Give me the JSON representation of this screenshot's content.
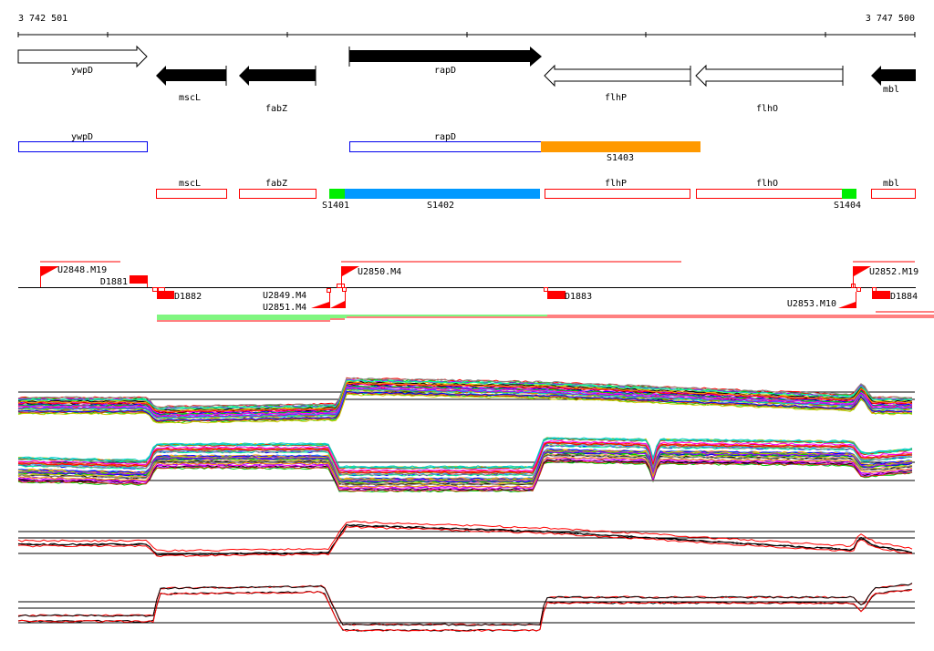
{
  "ruler": {
    "start_label": "3 742 501",
    "end_label": "3 747 500"
  },
  "genes": {
    "ywpD": "ywpD",
    "mscL": "mscL",
    "fabZ": "fabZ",
    "rapD": "rapD",
    "flhP": "flhP",
    "flhO": "flhO",
    "mbl": "mbl"
  },
  "segments": {
    "s1401": "S1401",
    "s1402": "S1402",
    "s1403": "S1403",
    "s1404": "S1404"
  },
  "features": {
    "u2848": "U2848.M19",
    "d1881": "D1881",
    "d1882": "D1882",
    "u2849": "U2849.M4",
    "u2851": "U2851.M4",
    "u2850": "U2850.M4",
    "d1883": "D1883",
    "u2853": "U2853.M10",
    "u2852": "U2852.M19",
    "d1884": "D1884"
  },
  "colors": {
    "red": "#ff0000",
    "blue": "#0000ee",
    "green": "#00ee00",
    "cyan_blue": "#0099ff",
    "orange": "#ff9900"
  }
}
